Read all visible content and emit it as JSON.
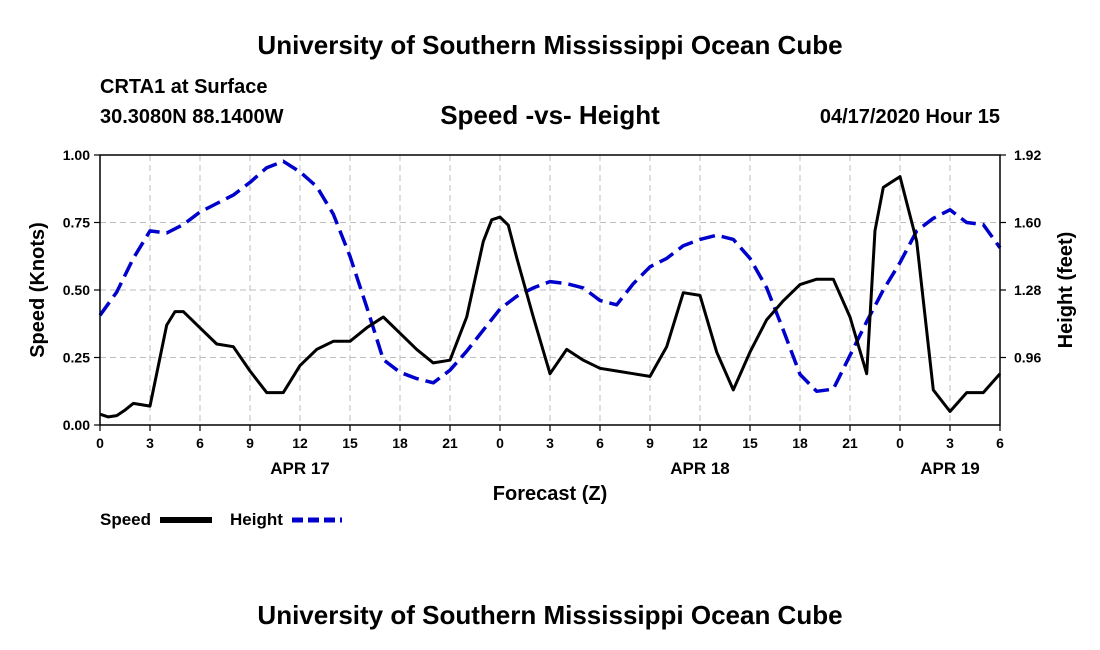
{
  "header": {
    "title": "University of Southern Mississippi Ocean Cube",
    "station": "CRTA1 at Surface",
    "coords": "30.3080N 88.1400W",
    "subtitle": "Speed -vs- Height",
    "timestamp": "04/17/2020 Hour 15"
  },
  "footer": {
    "title": "University of Southern Mississippi Ocean Cube"
  },
  "chart_data": {
    "type": "line",
    "title": "Speed -vs- Height",
    "xlabel": "Forecast (Z)",
    "ylabel": "Speed (Knots)",
    "y2label": "Height (feet)",
    "xlim": [
      0,
      54
    ],
    "ylim": [
      0,
      1
    ],
    "y2lim": [
      0.64,
      1.92
    ],
    "grid": true,
    "x_ticks": [
      0,
      3,
      6,
      9,
      12,
      15,
      18,
      21,
      24,
      27,
      30,
      33,
      36,
      39,
      42,
      45,
      48,
      51,
      54
    ],
    "x_tick_labels": [
      "0",
      "3",
      "6",
      "9",
      "12",
      "15",
      "18",
      "21",
      "0",
      "3",
      "6",
      "9",
      "12",
      "15",
      "18",
      "21",
      "0",
      "3",
      "6"
    ],
    "y_ticks": [
      "0.00",
      "0.25",
      "0.50",
      "0.75",
      "1.00"
    ],
    "y2_ticks": [
      "0.96",
      "1.28",
      "1.60",
      "1.92"
    ],
    "day_labels": [
      {
        "label": "APR 17",
        "x": 12
      },
      {
        "label": "APR 18",
        "x": 36
      },
      {
        "label": "APR 19",
        "x": 51
      }
    ],
    "legend_position": "bottom-left",
    "colors": {
      "speed": "#000000",
      "height": "#0000cc",
      "grid": "#bdbdbd"
    },
    "series": [
      {
        "name": "Speed",
        "axis": "left",
        "style": "solid",
        "color": "#000000",
        "x": [
          0,
          0.5,
          1,
          1.5,
          2,
          3,
          4,
          4.5,
          5,
          6,
          7,
          8,
          9,
          10,
          11,
          12,
          13,
          14,
          15,
          16,
          17,
          18,
          19,
          20,
          21,
          22,
          23,
          23.5,
          24,
          24.5,
          25,
          26,
          27,
          28,
          29,
          30,
          31,
          32,
          33,
          34,
          35,
          36,
          37,
          38,
          39,
          40,
          41,
          42,
          43,
          44,
          45,
          46,
          46.5,
          47,
          48,
          49,
          50,
          51,
          52,
          53,
          54
        ],
        "values": [
          0.04,
          0.03,
          0.035,
          0.055,
          0.08,
          0.07,
          0.37,
          0.42,
          0.42,
          0.36,
          0.3,
          0.29,
          0.2,
          0.12,
          0.12,
          0.22,
          0.28,
          0.31,
          0.31,
          0.36,
          0.4,
          0.34,
          0.28,
          0.23,
          0.24,
          0.4,
          0.68,
          0.76,
          0.77,
          0.74,
          0.62,
          0.4,
          0.19,
          0.28,
          0.24,
          0.21,
          0.2,
          0.19,
          0.18,
          0.29,
          0.49,
          0.48,
          0.27,
          0.13,
          0.27,
          0.39,
          0.46,
          0.52,
          0.54,
          0.54,
          0.4,
          0.19,
          0.72,
          0.88,
          0.92,
          0.68,
          0.13,
          0.05,
          0.12,
          0.12,
          0.19
        ]
      },
      {
        "name": "Height",
        "axis": "right",
        "style": "dashed",
        "color": "#0000cc",
        "x": [
          0,
          1,
          2,
          3,
          4,
          5,
          6,
          7,
          8,
          9,
          10,
          11,
          12,
          13,
          14,
          15,
          16,
          17,
          18,
          19,
          20,
          21,
          22,
          23,
          24,
          25,
          26,
          27,
          28,
          29,
          30,
          31,
          32,
          33,
          34,
          35,
          36,
          37,
          38,
          39,
          40,
          41,
          42,
          43,
          44,
          45,
          46,
          47,
          48,
          49,
          50,
          51,
          52,
          53,
          54
        ],
        "values": [
          1.16,
          1.27,
          1.43,
          1.56,
          1.55,
          1.59,
          1.65,
          1.69,
          1.73,
          1.79,
          1.86,
          1.89,
          1.84,
          1.77,
          1.64,
          1.44,
          1.2,
          0.95,
          0.89,
          0.86,
          0.84,
          0.9,
          0.99,
          1.09,
          1.19,
          1.25,
          1.29,
          1.32,
          1.31,
          1.29,
          1.23,
          1.21,
          1.31,
          1.39,
          1.43,
          1.49,
          1.52,
          1.54,
          1.52,
          1.43,
          1.29,
          1.09,
          0.88,
          0.8,
          0.81,
          0.97,
          1.13,
          1.28,
          1.41,
          1.56,
          1.62,
          1.66,
          1.6,
          1.59,
          1.48
        ]
      }
    ]
  }
}
